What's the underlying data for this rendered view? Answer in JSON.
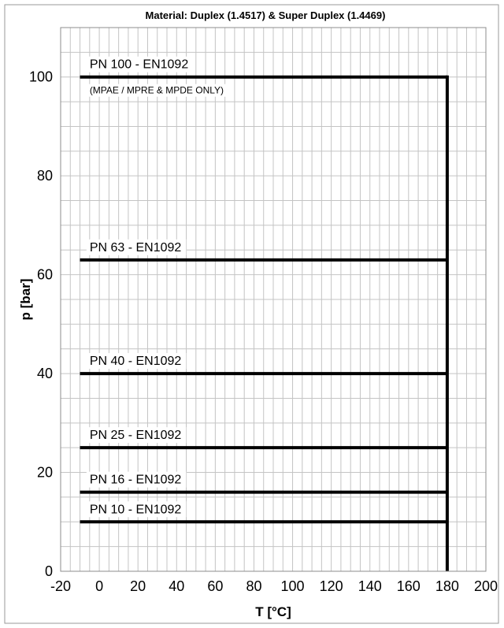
{
  "chart_data": {
    "type": "line",
    "title": "Material: Duplex (1.4517) & Super Duplex (1.4469)",
    "xlabel": "T [°C]",
    "ylabel": "p [bar]",
    "xlim": [
      -20,
      200
    ],
    "ylim": [
      0,
      110
    ],
    "x_ticks": [
      -20,
      0,
      20,
      40,
      60,
      80,
      100,
      120,
      140,
      160,
      180,
      200
    ],
    "y_ticks": [
      0,
      20,
      40,
      60,
      80,
      100
    ],
    "grid": true,
    "legend": "none",
    "line_color": "#000000",
    "series": [
      {
        "name": "PN 100 - EN1092",
        "note": "(MPAE / MPRE & MPDE ONLY)",
        "x": [
          -10,
          180
        ],
        "y": [
          100,
          100
        ]
      },
      {
        "name": "PN 63 - EN1092",
        "x": [
          -10,
          180
        ],
        "y": [
          63,
          63
        ]
      },
      {
        "name": "PN 40 - EN1092",
        "x": [
          -10,
          180
        ],
        "y": [
          40,
          40
        ]
      },
      {
        "name": "PN 25 - EN1092",
        "x": [
          -10,
          180
        ],
        "y": [
          25,
          25
        ]
      },
      {
        "name": "PN 16 - EN1092",
        "x": [
          -10,
          180
        ],
        "y": [
          16,
          16
        ]
      },
      {
        "name": "PN 10 - EN1092",
        "x": [
          -10,
          180
        ],
        "y": [
          10,
          10
        ]
      }
    ],
    "vertical_limit": {
      "x": [
        180,
        180
      ],
      "y": [
        0,
        100
      ]
    }
  }
}
